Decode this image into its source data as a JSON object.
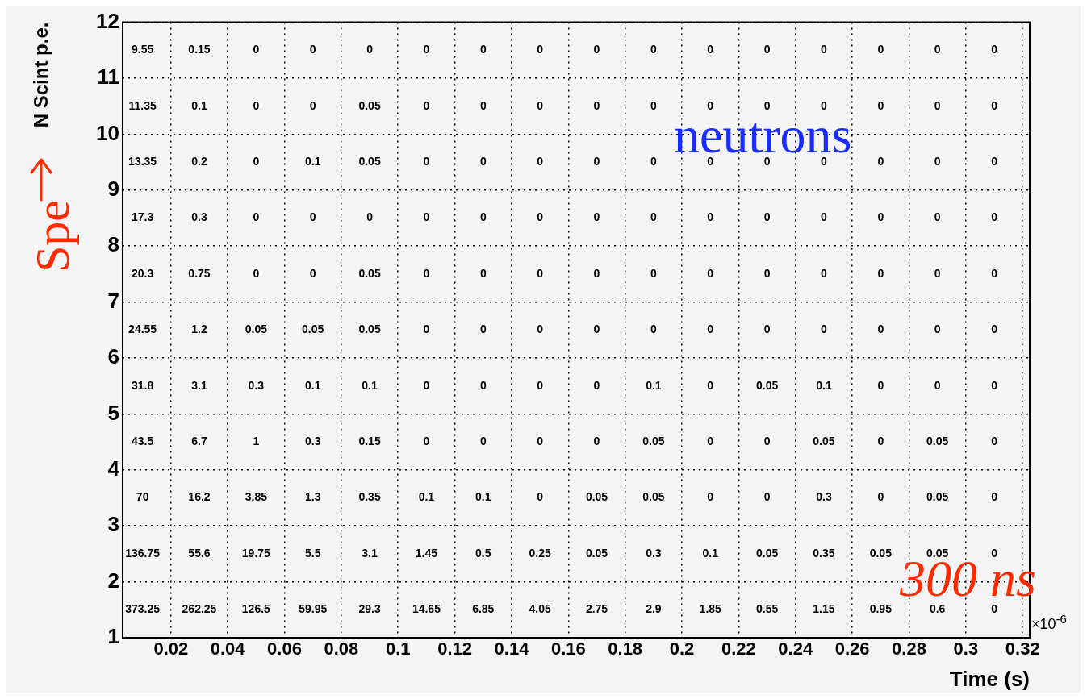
{
  "chart_data": {
    "type": "heatmap",
    "xlabel": "Time (s)",
    "ylabel": "N Scint p.e.",
    "annotations": [
      "neutrons",
      "300 ns",
      "Spe",
      "×10$^{-6}$"
    ],
    "x": [
      0.01,
      0.03,
      0.05,
      0.07,
      0.09,
      0.11,
      0.13,
      0.15,
      0.17,
      0.19,
      0.21,
      0.23,
      0.25,
      0.27,
      0.29,
      0.31
    ],
    "y": [
      11.5,
      10.5,
      9.5,
      8.5,
      7.5,
      6.5,
      5.5,
      4.5,
      3.5,
      2.5,
      1.5
    ],
    "cells": [
      [
        9.55,
        0.15,
        0,
        0,
        0,
        0,
        0,
        0,
        0,
        0,
        0,
        0,
        0,
        0,
        0,
        0
      ],
      [
        11.35,
        0.1,
        0,
        0,
        0.05,
        0,
        0,
        0,
        0,
        0,
        0,
        0,
        0,
        0,
        0,
        0
      ],
      [
        13.35,
        0.2,
        0,
        0.1,
        0.05,
        0,
        0,
        0,
        0,
        0,
        0,
        0,
        0,
        0,
        0,
        0
      ],
      [
        17.3,
        0.3,
        0,
        0,
        0,
        0,
        0,
        0,
        0,
        0,
        0,
        0,
        0,
        0,
        0,
        0
      ],
      [
        20.3,
        0.75,
        0,
        0,
        0.05,
        0,
        0,
        0,
        0,
        0,
        0,
        0,
        0,
        0,
        0,
        0
      ],
      [
        24.55,
        1.2,
        0.05,
        0.05,
        0.05,
        0,
        0,
        0,
        0,
        0,
        0,
        0,
        0,
        0,
        0,
        0
      ],
      [
        31.8,
        3.1,
        0.3,
        0.1,
        0.1,
        0,
        0,
        0,
        0,
        0.1,
        0,
        0.05,
        0.1,
        0,
        0,
        0
      ],
      [
        43.5,
        6.7,
        1,
        0.3,
        0.15,
        0,
        0,
        0,
        0,
        0.05,
        0,
        0,
        0.05,
        0,
        0.05,
        0
      ],
      [
        70,
        16.2,
        3.85,
        1.3,
        0.35,
        0.1,
        0.1,
        0,
        0.05,
        0.05,
        0,
        0,
        0.3,
        0,
        0.05,
        0
      ],
      [
        136.75,
        55.6,
        19.75,
        5.5,
        3.1,
        1.45,
        0.5,
        0.25,
        0.05,
        0.3,
        0.1,
        0.05,
        0.35,
        0.05,
        0.05,
        0
      ],
      [
        373.25,
        262.25,
        126.5,
        59.95,
        29.3,
        14.65,
        6.85,
        4.05,
        2.75,
        2.9,
        1.85,
        0.55,
        1.15,
        0.95,
        0.6,
        0
      ]
    ],
    "data_labels": true,
    "grid": true,
    "xlim": [
      0.003,
      0.3225
    ],
    "xticks": [
      0.02,
      0.04,
      0.06,
      0.08,
      0.1,
      0.12,
      0.14,
      0.16,
      0.18,
      0.2,
      0.22,
      0.24,
      0.26,
      0.28,
      0.3,
      0.32
    ],
    "ylim": [
      1,
      12
    ],
    "yticks": [
      1,
      2,
      3,
      4,
      5,
      6,
      7,
      8,
      9,
      10,
      11,
      12
    ]
  }
}
